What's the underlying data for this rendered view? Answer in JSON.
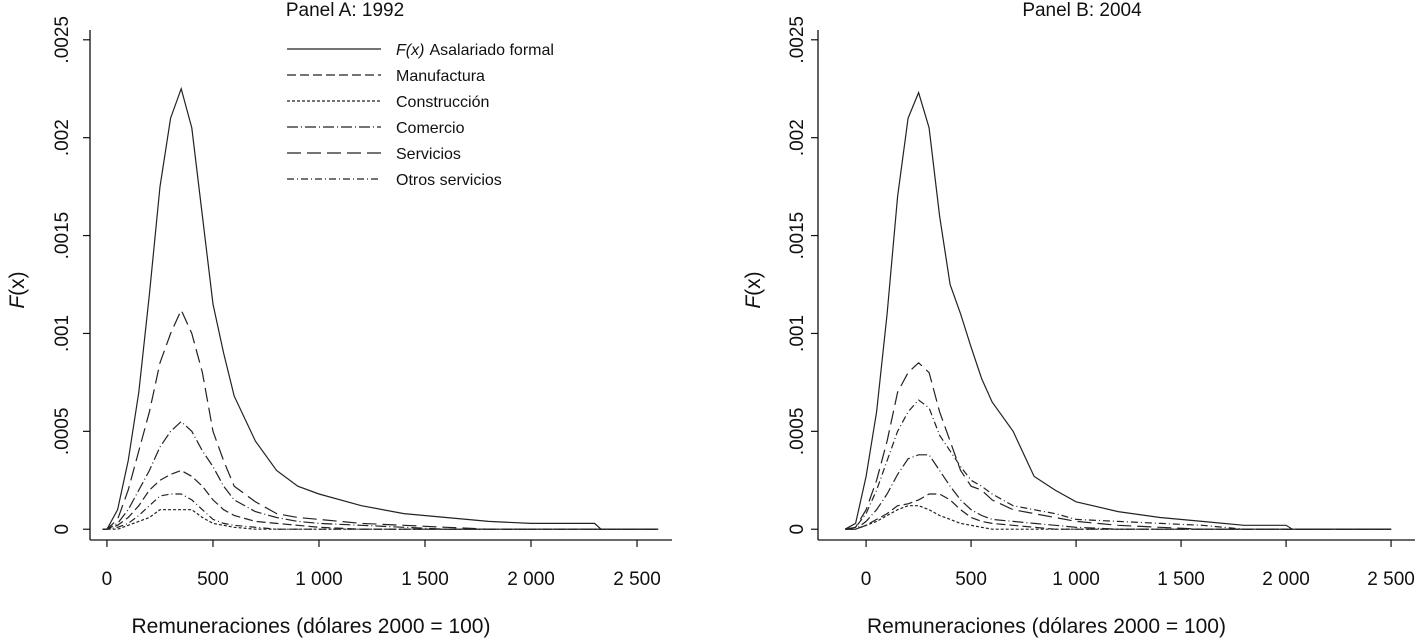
{
  "chart_data": [
    {
      "type": "line",
      "title": "Panel A: 1992",
      "xlabel": "Remuneraciones (dólares 2000 = 100)",
      "ylabel_italic": "F",
      "ylabel_paren": "(x)",
      "xlim": [
        -80,
        2665
      ],
      "ylim": [
        -5.5e-05,
        0.00255
      ],
      "xticks": [
        0,
        500,
        1000,
        1500,
        2000,
        2500
      ],
      "xtick_labels": [
        "0",
        "500",
        "1 000",
        "1 500",
        "2 000",
        "2 500"
      ],
      "yticks": [
        0,
        0.0005,
        0.001,
        0.0015,
        0.002,
        0.0025
      ],
      "ytick_labels": [
        "0",
        ".0005",
        ".001",
        ".0015",
        ".002",
        ".0025"
      ],
      "legend_position": "top-right",
      "x": [
        -20,
        0,
        50,
        100,
        150,
        200,
        250,
        300,
        350,
        400,
        450,
        500,
        550,
        600,
        700,
        800,
        900,
        1000,
        1200,
        1400,
        1600,
        1800,
        2000,
        2300,
        2330,
        2600
      ],
      "series": [
        {
          "name": "Asalariado formal",
          "name_prefix": "F(x)",
          "dash": "",
          "values": [
            0,
            0,
            0.0001,
            0.00035,
            0.0007,
            0.0012,
            0.00175,
            0.0021,
            0.00225,
            0.00205,
            0.0016,
            0.00115,
            0.0009,
            0.00068,
            0.00045,
            0.0003,
            0.00022,
            0.00018,
            0.00012,
            8e-05,
            6e-05,
            4e-05,
            3e-05,
            3e-05,
            0,
            0
          ]
        },
        {
          "name": "Manufactura",
          "dash": "9,4",
          "values": [
            0,
            0,
            2e-05,
            6e-05,
            0.00012,
            0.0002,
            0.00025,
            0.00028,
            0.0003,
            0.00027,
            0.00022,
            0.00015,
            0.0001,
            7e-05,
            4e-05,
            3e-05,
            2e-05,
            1e-05,
            0,
            0,
            0,
            0,
            0,
            0,
            0,
            0
          ]
        },
        {
          "name": "Construcción",
          "dash": "3,2",
          "values": [
            0,
            0,
            0,
            2e-05,
            4e-05,
            6e-05,
            0.0001,
            0.0001,
            0.0001,
            0.0001,
            6e-05,
            3e-05,
            2e-05,
            1e-05,
            0,
            0,
            0,
            0,
            0,
            0,
            0,
            0,
            0,
            0,
            0,
            0
          ]
        },
        {
          "name": "Comercio",
          "dash": "11,3,1,3",
          "values": [
            0,
            0,
            3e-05,
            0.0001,
            0.0002,
            0.0003,
            0.00042,
            0.0005,
            0.00055,
            0.0005,
            0.0004,
            0.00032,
            0.00022,
            0.00015,
            9e-05,
            6e-05,
            4e-05,
            3e-05,
            2e-05,
            1e-05,
            0,
            0,
            0,
            0,
            0,
            0
          ]
        },
        {
          "name": "Servicios",
          "dash": "14,6",
          "values": [
            0,
            0,
            5e-05,
            0.0002,
            0.0004,
            0.0006,
            0.00085,
            0.001,
            0.00112,
            0.001,
            0.0008,
            0.0005,
            0.00035,
            0.00022,
            0.00014,
            8e-05,
            6e-05,
            5e-05,
            3e-05,
            2e-05,
            1e-05,
            0,
            0,
            0,
            0,
            0
          ]
        },
        {
          "name": "Otros servicios",
          "dash": "7,3,1,3",
          "values": [
            0,
            0,
            1e-05,
            3e-05,
            7e-05,
            0.00012,
            0.00017,
            0.00018,
            0.00018,
            0.00015,
            0.0001,
            5e-05,
            3e-05,
            2e-05,
            1e-05,
            0,
            0,
            0,
            0,
            0,
            0,
            0,
            0,
            0,
            0,
            0
          ]
        }
      ]
    },
    {
      "type": "line",
      "title": "Panel B: 2004",
      "xlabel": "Remuneraciones (dólares 2000 = 100)",
      "ylabel_italic": "F",
      "ylabel_paren": "(x)",
      "xlim": [
        -229,
        2614
      ],
      "ylim": [
        -5.5e-05,
        0.00255
      ],
      "xticks": [
        0,
        500,
        1000,
        1500,
        2000,
        2500
      ],
      "xtick_labels": [
        "0",
        "500",
        "1 000",
        "1 500",
        "2 000",
        "2 500"
      ],
      "yticks": [
        0,
        0.0005,
        0.001,
        0.0015,
        0.002,
        0.0025
      ],
      "ytick_labels": [
        "0",
        ".0005",
        ".001",
        ".0015",
        ".002",
        ".0025"
      ],
      "x": [
        -100,
        -50,
        0,
        50,
        100,
        150,
        200,
        250,
        300,
        350,
        400,
        450,
        500,
        550,
        600,
        700,
        800,
        900,
        1000,
        1200,
        1400,
        1600,
        1800,
        2000,
        2030,
        2500
      ],
      "series": [
        {
          "name": "Asalariado formal",
          "dash": "",
          "values": [
            0,
            3e-05,
            0.00027,
            0.0006,
            0.0011,
            0.0017,
            0.0021,
            0.00223,
            0.00205,
            0.0016,
            0.00125,
            0.0011,
            0.00093,
            0.00077,
            0.00065,
            0.0005,
            0.00027,
            0.0002,
            0.00014,
            9e-05,
            6e-05,
            4e-05,
            2e-05,
            2e-05,
            0,
            0
          ]
        },
        {
          "name": "Manufactura",
          "dash": "9,4",
          "values": [
            0,
            0,
            2e-05,
            5e-05,
            8e-05,
            0.00012,
            0.00013,
            0.00015,
            0.00018,
            0.00018,
            0.00015,
            0.0001,
            6e-05,
            4e-05,
            3e-05,
            2e-05,
            1e-05,
            0,
            0,
            0,
            0,
            0,
            0,
            0,
            0,
            0
          ]
        },
        {
          "name": "Construcción",
          "dash": "3,2",
          "values": [
            0,
            0,
            2e-05,
            4e-05,
            7e-05,
            0.0001,
            0.00012,
            0.00012,
            0.0001,
            7e-05,
            5e-05,
            3e-05,
            2e-05,
            1e-05,
            0,
            0,
            0,
            0,
            0,
            0,
            0,
            0,
            0,
            0,
            0,
            0
          ]
        },
        {
          "name": "Comercio",
          "dash": "11,3,1,3",
          "values": [
            0,
            0,
            4e-05,
            0.0001,
            0.00018,
            0.00028,
            0.00036,
            0.00038,
            0.00038,
            0.0003,
            0.00022,
            0.00015,
            0.0001,
            7e-05,
            5e-05,
            4e-05,
            3e-05,
            2e-05,
            1e-05,
            0,
            0,
            0,
            0,
            0,
            0,
            0
          ]
        },
        {
          "name": "Servicios",
          "dash": "14,6",
          "values": [
            0,
            1e-05,
            0.0001,
            0.00025,
            0.00045,
            0.0007,
            0.0008,
            0.00085,
            0.0008,
            0.0006,
            0.00045,
            0.0003,
            0.00022,
            0.0002,
            0.00015,
            0.0001,
            8e-05,
            6e-05,
            4e-05,
            2e-05,
            1e-05,
            0,
            0,
            0,
            0,
            0
          ]
        },
        {
          "name": "Otros servicios",
          "dash": "7,3,1,3",
          "values": [
            0,
            1e-05,
            8e-05,
            0.0002,
            0.00035,
            0.0005,
            0.0006,
            0.00066,
            0.00062,
            0.00048,
            0.0004,
            0.00032,
            0.00025,
            0.00022,
            0.00018,
            0.00012,
            0.0001,
            8e-05,
            5e-05,
            4e-05,
            3e-05,
            2e-05,
            0,
            0,
            0,
            0
          ]
        }
      ]
    }
  ]
}
